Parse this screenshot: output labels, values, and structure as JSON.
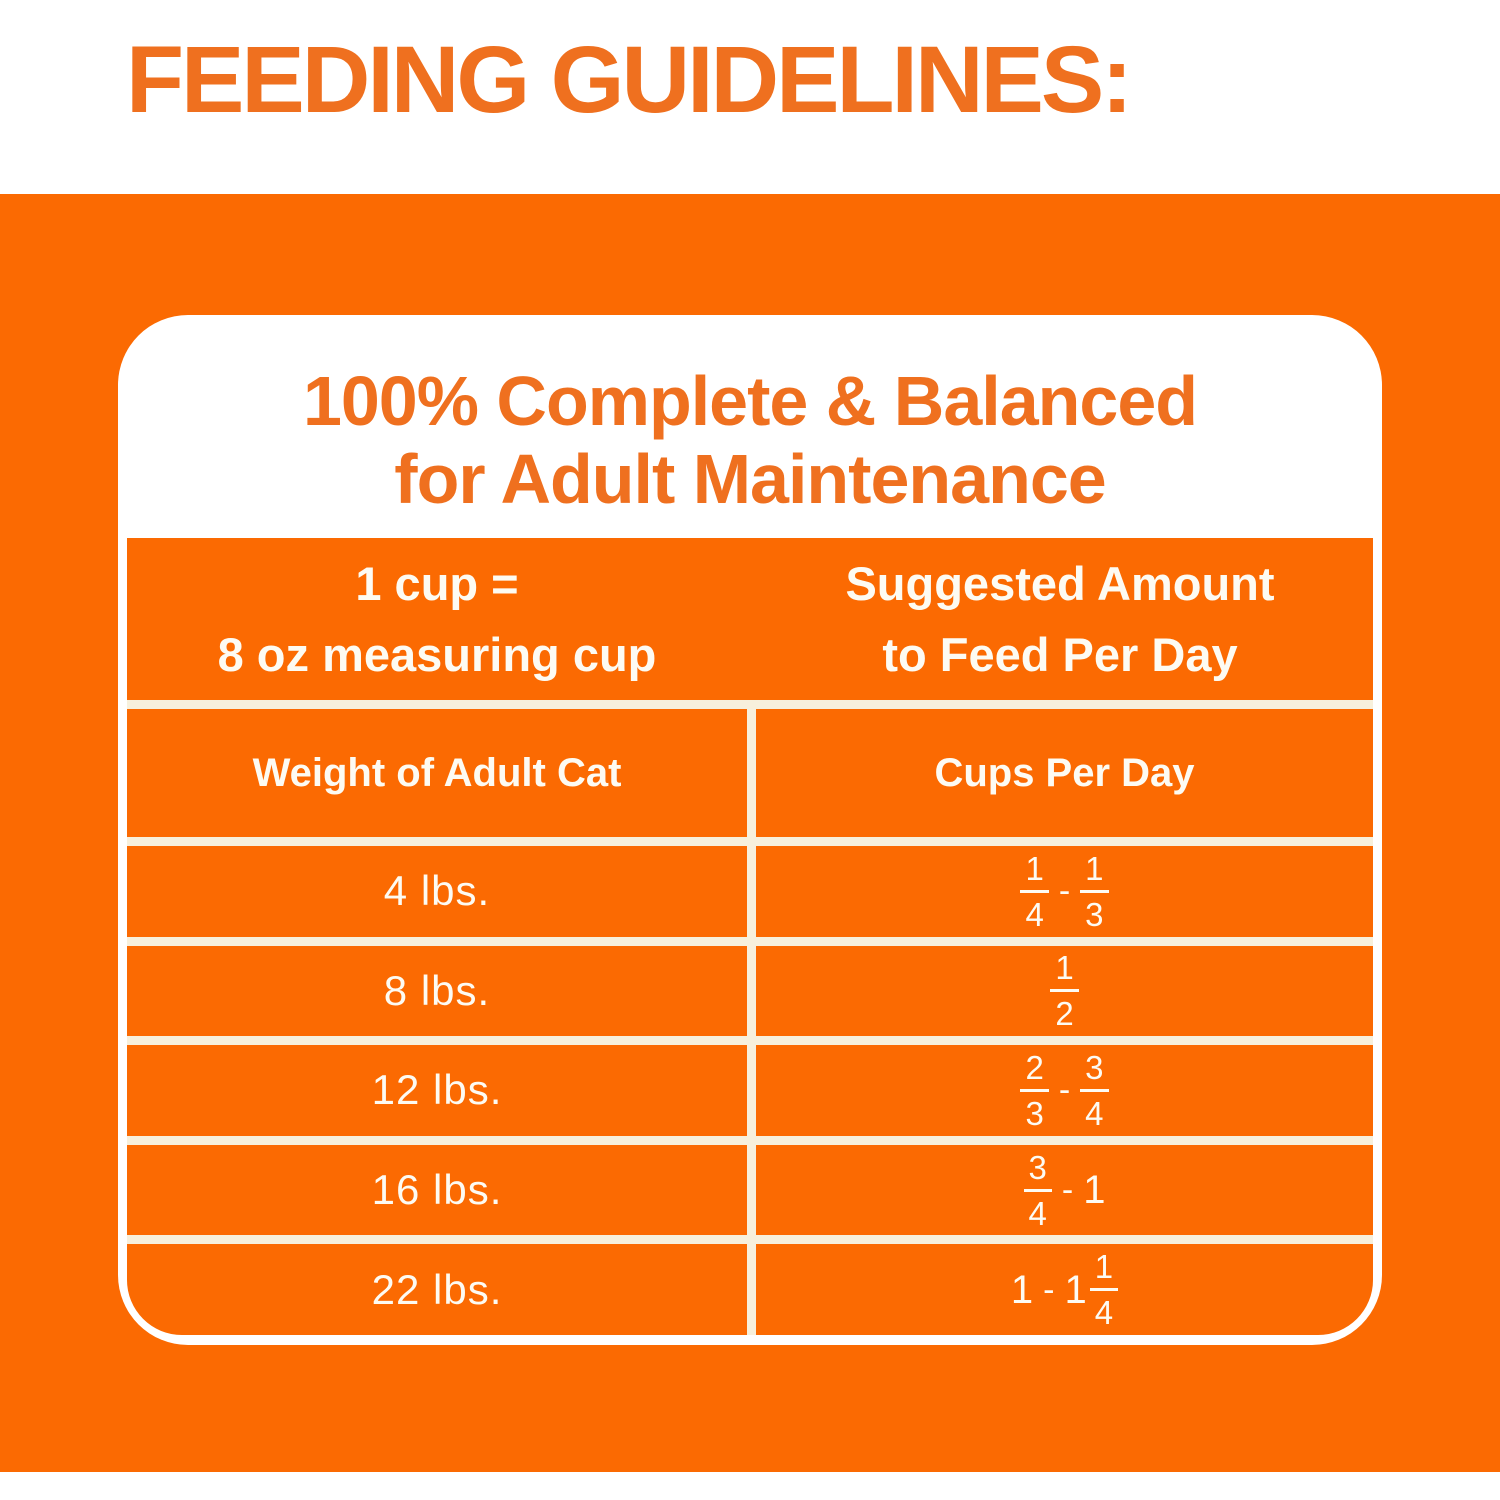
{
  "title": "FEEDING GUIDELINES:",
  "card": {
    "heading_line1": "100% Complete & Balanced",
    "heading_line2": "for Adult Maintenance"
  },
  "table": {
    "header": {
      "col1_line1": "1 cup =",
      "col1_line2": "8 oz measuring cup",
      "col2_line1": "Suggested Amount",
      "col2_line2": "to Feed Per Day"
    },
    "subheader": {
      "col1": "Weight of Adult Cat",
      "col2": "Cups Per Day"
    },
    "rows": [
      {
        "weight": "4 lbs.",
        "cups_label": "1/4 - 1/3",
        "cups": [
          {
            "frac": [
              "1",
              "4"
            ]
          },
          {
            "dash": "-"
          },
          {
            "frac": [
              "1",
              "3"
            ]
          }
        ]
      },
      {
        "weight": "8 lbs.",
        "cups_label": "1/2",
        "cups": [
          {
            "frac": [
              "1",
              "2"
            ]
          }
        ]
      },
      {
        "weight": "12 lbs.",
        "cups_label": "2/3 - 3/4",
        "cups": [
          {
            "frac": [
              "2",
              "3"
            ]
          },
          {
            "dash": "-"
          },
          {
            "frac": [
              "3",
              "4"
            ]
          }
        ]
      },
      {
        "weight": "16 lbs.",
        "cups_label": "3/4 - 1",
        "cups": [
          {
            "frac": [
              "3",
              "4"
            ]
          },
          {
            "dash": "-"
          },
          {
            "text": "1"
          }
        ]
      },
      {
        "weight": "22 lbs.",
        "cups_label": "1 - 1 1/4",
        "cups": [
          {
            "text": "1"
          },
          {
            "dash": "-"
          },
          {
            "mixed": {
              "whole": "1",
              "frac": [
                "1",
                "4"
              ]
            }
          }
        ]
      }
    ]
  },
  "colors": {
    "background_orange": "#FB6A02",
    "heading_orange": "#EF701F",
    "card_white": "#FFFFFF",
    "grid_cream": "#F7F0DC",
    "table_text": "#FDFBF3"
  }
}
